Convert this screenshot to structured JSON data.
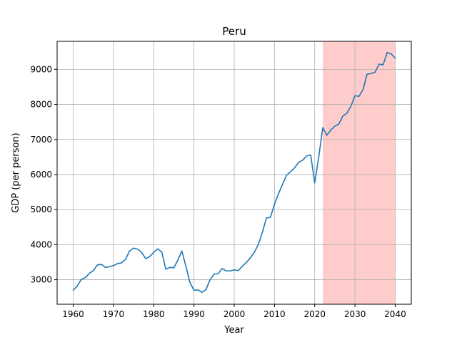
{
  "chart_data": {
    "type": "line",
    "title": "Peru",
    "xlabel": "Year",
    "ylabel": "GDP (per person)",
    "xlim": [
      1956,
      2044
    ],
    "ylim": [
      2300,
      9800
    ],
    "xticks": [
      1960,
      1970,
      1980,
      1990,
      2000,
      2010,
      2020,
      2030,
      2040
    ],
    "yticks": [
      3000,
      4000,
      5000,
      6000,
      7000,
      8000,
      9000
    ],
    "grid": true,
    "shaded_region": {
      "x_start": 2022,
      "x_end": 2040,
      "color": "#ffcccc"
    },
    "series": [
      {
        "color": "#1f77b4",
        "x": [
          1960,
          1961,
          1962,
          1963,
          1964,
          1965,
          1966,
          1967,
          1968,
          1969,
          1970,
          1971,
          1972,
          1973,
          1974,
          1975,
          1976,
          1977,
          1978,
          1979,
          1980,
          1981,
          1982,
          1983,
          1984,
          1985,
          1986,
          1987,
          1988,
          1989,
          1990,
          1991,
          1992,
          1993,
          1994,
          1995,
          1996,
          1997,
          1998,
          1999,
          2000,
          2001,
          2002,
          2003,
          2004,
          2005,
          2006,
          2007,
          2008,
          2009,
          2010,
          2011,
          2012,
          2013,
          2014,
          2015,
          2016,
          2017,
          2018,
          2019,
          2020,
          2021,
          2022,
          2023,
          2024,
          2025,
          2026,
          2027,
          2028,
          2029,
          2030,
          2031,
          2032,
          2033,
          2034,
          2035,
          2036,
          2037,
          2038,
          2039,
          2040
        ],
        "values": [
          2700,
          2820,
          3010,
          3060,
          3180,
          3260,
          3420,
          3440,
          3350,
          3370,
          3400,
          3460,
          3480,
          3580,
          3820,
          3900,
          3870,
          3780,
          3600,
          3660,
          3780,
          3880,
          3790,
          3300,
          3350,
          3340,
          3560,
          3820,
          3380,
          2920,
          2700,
          2710,
          2640,
          2720,
          3000,
          3160,
          3170,
          3320,
          3250,
          3250,
          3280,
          3260,
          3380,
          3490,
          3620,
          3780,
          4010,
          4350,
          4760,
          4780,
          5150,
          5450,
          5720,
          5980,
          6080,
          6190,
          6350,
          6410,
          6530,
          6560,
          5760,
          6500,
          7340,
          7120,
          7270,
          7380,
          7440,
          7670,
          7750,
          7950,
          8250,
          8230,
          8420,
          8860,
          8880,
          8920,
          9150,
          9130,
          9480,
          9440,
          9320
        ]
      }
    ]
  }
}
